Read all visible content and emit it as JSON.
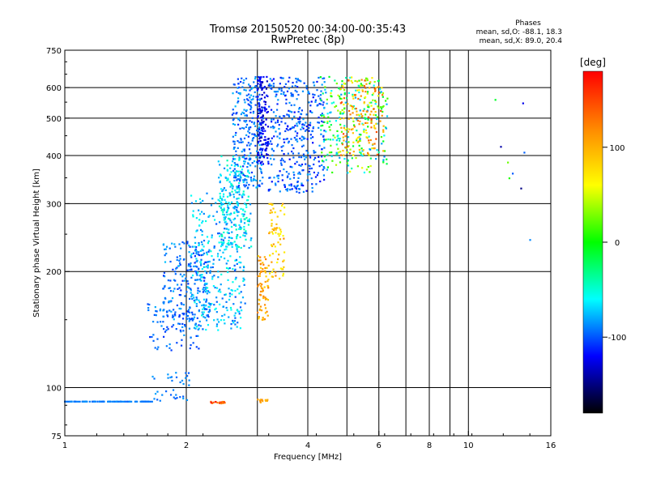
{
  "chart_data": {
    "type": "scatter",
    "title": "Tromsø 20150520 00:34:00-00:35:43",
    "subtitle": "RwPretec (8p)",
    "xlabel": "Frequency [MHz]",
    "ylabel": "Stationary phase Virtual Height [km]",
    "x_scale": "log",
    "y_scale": "log",
    "xlim": [
      1,
      16
    ],
    "ylim": [
      75,
      750
    ],
    "x_ticks": [
      1,
      2,
      4,
      6,
      8,
      10,
      16
    ],
    "y_ticks": [
      75,
      100,
      200,
      300,
      400,
      500,
      600,
      750
    ],
    "x_grid": [
      2,
      3,
      4,
      5,
      6,
      7,
      8,
      9,
      10
    ],
    "y_grid": [
      100,
      200,
      300,
      400,
      500,
      600
    ],
    "grid": true,
    "annotation": {
      "title": "Phases",
      "lines": [
        "mean, sd,O: -88.1, 18.3",
        "mean, sd,X:  89.0, 20.4"
      ]
    },
    "colorbar": {
      "label": "[deg]",
      "range": [
        -180,
        180
      ],
      "ticks": [
        100,
        0,
        -100
      ],
      "colors": [
        "#ff0000",
        "#ff8800",
        "#ffff00",
        "#00ff00",
        "#00ffff",
        "#0000ff",
        "#000000"
      ]
    },
    "series": [
      {
        "x": [
          1.0,
          1.65
        ],
        "y": [
          92,
          92
        ],
        "count": 110,
        "phase": [
          -95,
          -85
        ]
      },
      {
        "x": [
          1.65,
          2.05
        ],
        "y": [
          92,
          110
        ],
        "count": 35,
        "phase": [
          -100,
          -80
        ]
      },
      {
        "x": [
          1.6,
          2.15
        ],
        "y": [
          125,
          165
        ],
        "count": 90,
        "phase": [
          -110,
          -80
        ]
      },
      {
        "x": [
          1.75,
          2.3
        ],
        "y": [
          150,
          240
        ],
        "count": 220,
        "phase": [
          -110,
          -75
        ]
      },
      {
        "x": [
          2.05,
          2.8
        ],
        "y": [
          140,
          320
        ],
        "count": 320,
        "phase": [
          -100,
          -50
        ]
      },
      {
        "x": [
          2.4,
          2.9
        ],
        "y": [
          230,
          400
        ],
        "count": 200,
        "phase": [
          -90,
          -40
        ]
      },
      {
        "x": [
          2.6,
          3.1
        ],
        "y": [
          330,
          640
        ],
        "count": 260,
        "phase": [
          -110,
          -75
        ]
      },
      {
        "x": [
          3.0,
          3.2
        ],
        "y": [
          380,
          640
        ],
        "count": 140,
        "phase": [
          -140,
          -110
        ]
      },
      {
        "x": [
          3.2,
          4.4
        ],
        "y": [
          320,
          640
        ],
        "count": 380,
        "phase": [
          -120,
          -80
        ]
      },
      {
        "x": [
          4.3,
          6.3
        ],
        "y": [
          360,
          640
        ],
        "count": 260,
        "phase": [
          -90,
          60
        ]
      },
      {
        "x": [
          4.8,
          6.2
        ],
        "y": [
          400,
          640
        ],
        "count": 140,
        "phase": [
          60,
          150
        ]
      },
      {
        "x": [
          3.0,
          3.2
        ],
        "y": [
          150,
          220
        ],
        "count": 70,
        "phase": [
          80,
          130
        ]
      },
      {
        "x": [
          3.2,
          3.5
        ],
        "y": [
          190,
          300
        ],
        "count": 70,
        "phase": [
          60,
          120
        ]
      },
      {
        "x": [
          2.3,
          2.5
        ],
        "y": [
          91,
          92
        ],
        "count": 20,
        "phase": [
          120,
          170
        ]
      },
      {
        "x": [
          3.0,
          3.2
        ],
        "y": [
          91,
          94
        ],
        "count": 12,
        "phase": [
          90,
          130
        ]
      },
      {
        "x": [
          11.0,
          14.5
        ],
        "y": [
          235,
          620
        ],
        "count": 9,
        "phase": [
          -150,
          160
        ]
      }
    ]
  }
}
